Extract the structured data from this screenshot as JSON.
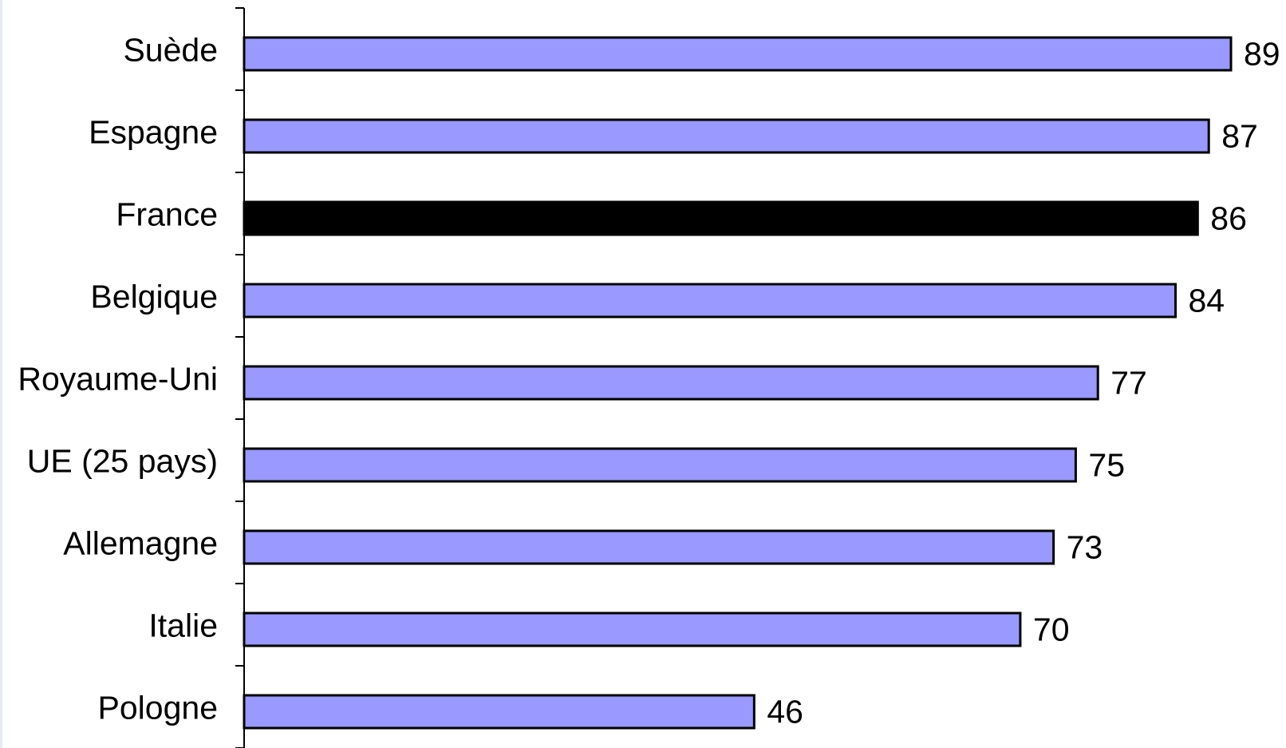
{
  "chart_data": {
    "type": "bar",
    "orientation": "horizontal",
    "categories": [
      "Suède",
      "Espagne",
      "France",
      "Belgique",
      "Royaume-Uni",
      "UE (25 pays)",
      "Allemagne",
      "Italie",
      "Pologne"
    ],
    "values": [
      89,
      87,
      86,
      84,
      77,
      75,
      73,
      70,
      46
    ],
    "value_labels": [
      "89",
      "87",
      "86",
      "84",
      "77",
      "75",
      "73",
      "70",
      "46"
    ],
    "highlight_category": "France",
    "colors": {
      "bar": "#9999ff",
      "highlight": "#000000",
      "outline": "#000000",
      "axis": "#000000",
      "frame": "#e6ebf5"
    },
    "xlim": [
      0,
      89
    ],
    "grid": false,
    "legend": "none"
  }
}
